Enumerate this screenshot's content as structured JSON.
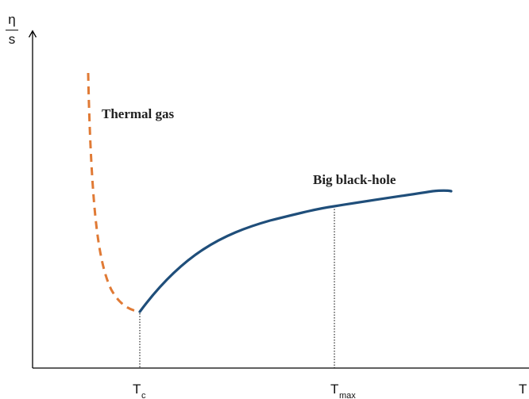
{
  "y_axis": {
    "numerator": "η",
    "denominator": "s"
  },
  "x_axis": {
    "label": "T"
  },
  "ticks": {
    "tc": {
      "main": "T",
      "sub": "c"
    },
    "tmax": {
      "main": "T",
      "sub": "max"
    }
  },
  "labels": {
    "thermal_gas": "Thermal gas",
    "big_black_hole": "Big black-hole"
  },
  "colors": {
    "thermal_gas": "#e07a35",
    "black_hole": "#1f4e7a",
    "axis": "#000000"
  }
}
